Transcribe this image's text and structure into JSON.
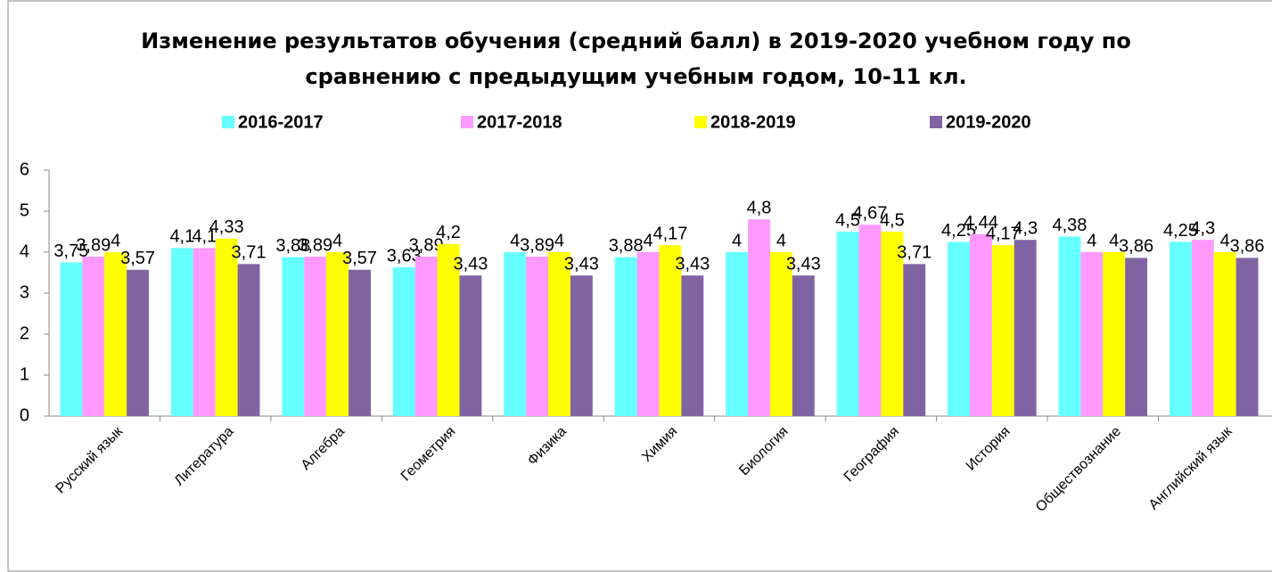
{
  "chart_data": {
    "type": "bar",
    "title": "Изменение результатов обучения (средний балл) в 2019-2020 учебном году по\nсравнению с предыдущим учебным годом, 10-11 кл.",
    "categories": [
      "Русский язык",
      "Литература",
      "Алгебра",
      "Геометрия",
      "Физика",
      "Химия",
      "Биология",
      "География",
      "История",
      "Обществознание",
      "Английский язык"
    ],
    "series": [
      {
        "name": "2016-2017",
        "color": "#66ffff",
        "values": [
          3.75,
          4.1,
          3.88,
          3.63,
          4,
          3.88,
          4,
          4.5,
          4.25,
          4.38,
          4.25
        ],
        "value_labels": [
          "3,75",
          "4,1",
          "3,88",
          "3,63",
          "4",
          "3,88",
          "4",
          "4,5",
          "4,25",
          "4,38",
          "4,25"
        ]
      },
      {
        "name": "2017-2018",
        "color": "#ff99ff",
        "values": [
          3.89,
          4.1,
          3.89,
          3.89,
          3.89,
          4,
          4.8,
          4.67,
          4.44,
          4,
          4.3
        ],
        "value_labels": [
          "3,89",
          "4,1",
          "3,89",
          "3,89",
          "3,89",
          "4",
          "4,8",
          "4,67",
          "4,44",
          "4",
          "4,3"
        ]
      },
      {
        "name": "2018-2019",
        "color": "#ffff00",
        "values": [
          4,
          4.33,
          4,
          4.2,
          4,
          4.17,
          4,
          4.5,
          4.17,
          4,
          4
        ],
        "value_labels": [
          "4",
          "4,33",
          "4",
          "4,2",
          "4",
          "4,17",
          "4",
          "4,5",
          "4,17",
          "4",
          "4"
        ]
      },
      {
        "name": "2019-2020",
        "color": "#8064a2",
        "values": [
          3.57,
          3.71,
          3.57,
          3.43,
          3.43,
          3.43,
          3.43,
          3.71,
          4.3,
          3.86,
          3.86
        ],
        "value_labels": [
          "3,57",
          "3,71",
          "3,57",
          "3,43",
          "3,43",
          "3,43",
          "3,43",
          "3,71",
          "4,3",
          "3,86",
          "3,86"
        ]
      }
    ],
    "ylim": [
      0,
      6
    ],
    "yticks": [
      0,
      1,
      2,
      3,
      4,
      5,
      6
    ],
    "grid": false
  }
}
